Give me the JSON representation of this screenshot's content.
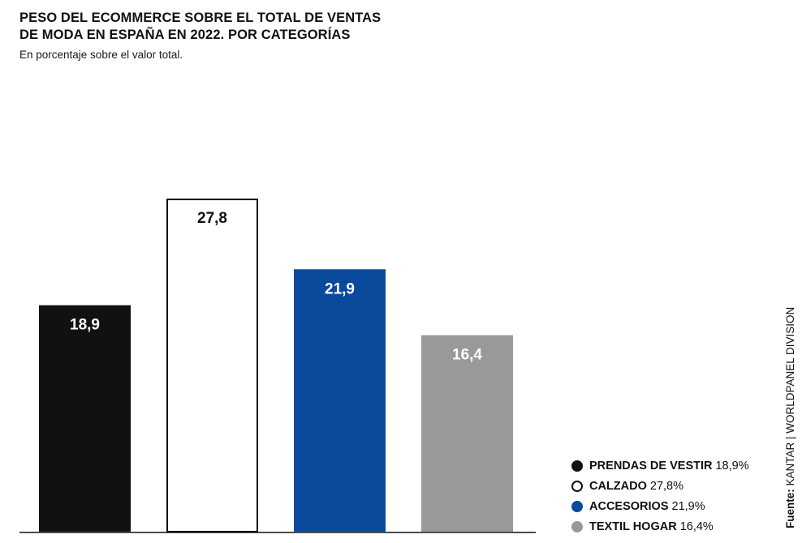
{
  "title_lines": [
    "PESO DEL ECOMMERCE SOBRE EL TOTAL DE VENTAS",
    "DE MODA EN ESPAÑA EN 2022. POR CATEGORÍAS"
  ],
  "subtitle": "En porcentaje sobre el valor total.",
  "source": {
    "label": "Fuente:",
    "text": " KANTAR | WORLDPANEL DIVISION"
  },
  "legend": [
    {
      "name": "PRENDAS DE VESTIR",
      "value": "18,9%",
      "color": "#111111",
      "outline": false
    },
    {
      "name": "CALZADO",
      "value": "27,8%",
      "color": "#ffffff",
      "outline": true
    },
    {
      "name": "ACCESORIOS",
      "value": "21,9%",
      "color": "#0a4a9c",
      "outline": false
    },
    {
      "name": "TEXTIL HOGAR",
      "value": "16,4%",
      "color": "#999999",
      "outline": false
    }
  ],
  "chart_data": {
    "type": "bar",
    "categories": [
      "PRENDAS DE VESTIR",
      "CALZADO",
      "ACCESORIOS",
      "TEXTIL HOGAR"
    ],
    "values": [
      18.9,
      27.8,
      21.9,
      16.4
    ],
    "value_labels": [
      "18,9",
      "27,8",
      "21,9",
      "16,4"
    ],
    "colors": [
      "#111111",
      "#ffffff",
      "#0a4a9c",
      "#999999"
    ],
    "label_colors": [
      "#ffffff",
      "#111111",
      "#ffffff",
      "#ffffff"
    ],
    "title": "PESO DEL ECOMMERCE SOBRE EL TOTAL DE VENTAS DE MODA EN ESPAÑA EN 2022. POR CATEGORÍAS",
    "subtitle": "En porcentaje sobre el valor total.",
    "xlabel": "",
    "ylabel": "",
    "ylim": [
      0,
      32.2
    ],
    "grid": false,
    "legend_position": "bottom-right"
  }
}
